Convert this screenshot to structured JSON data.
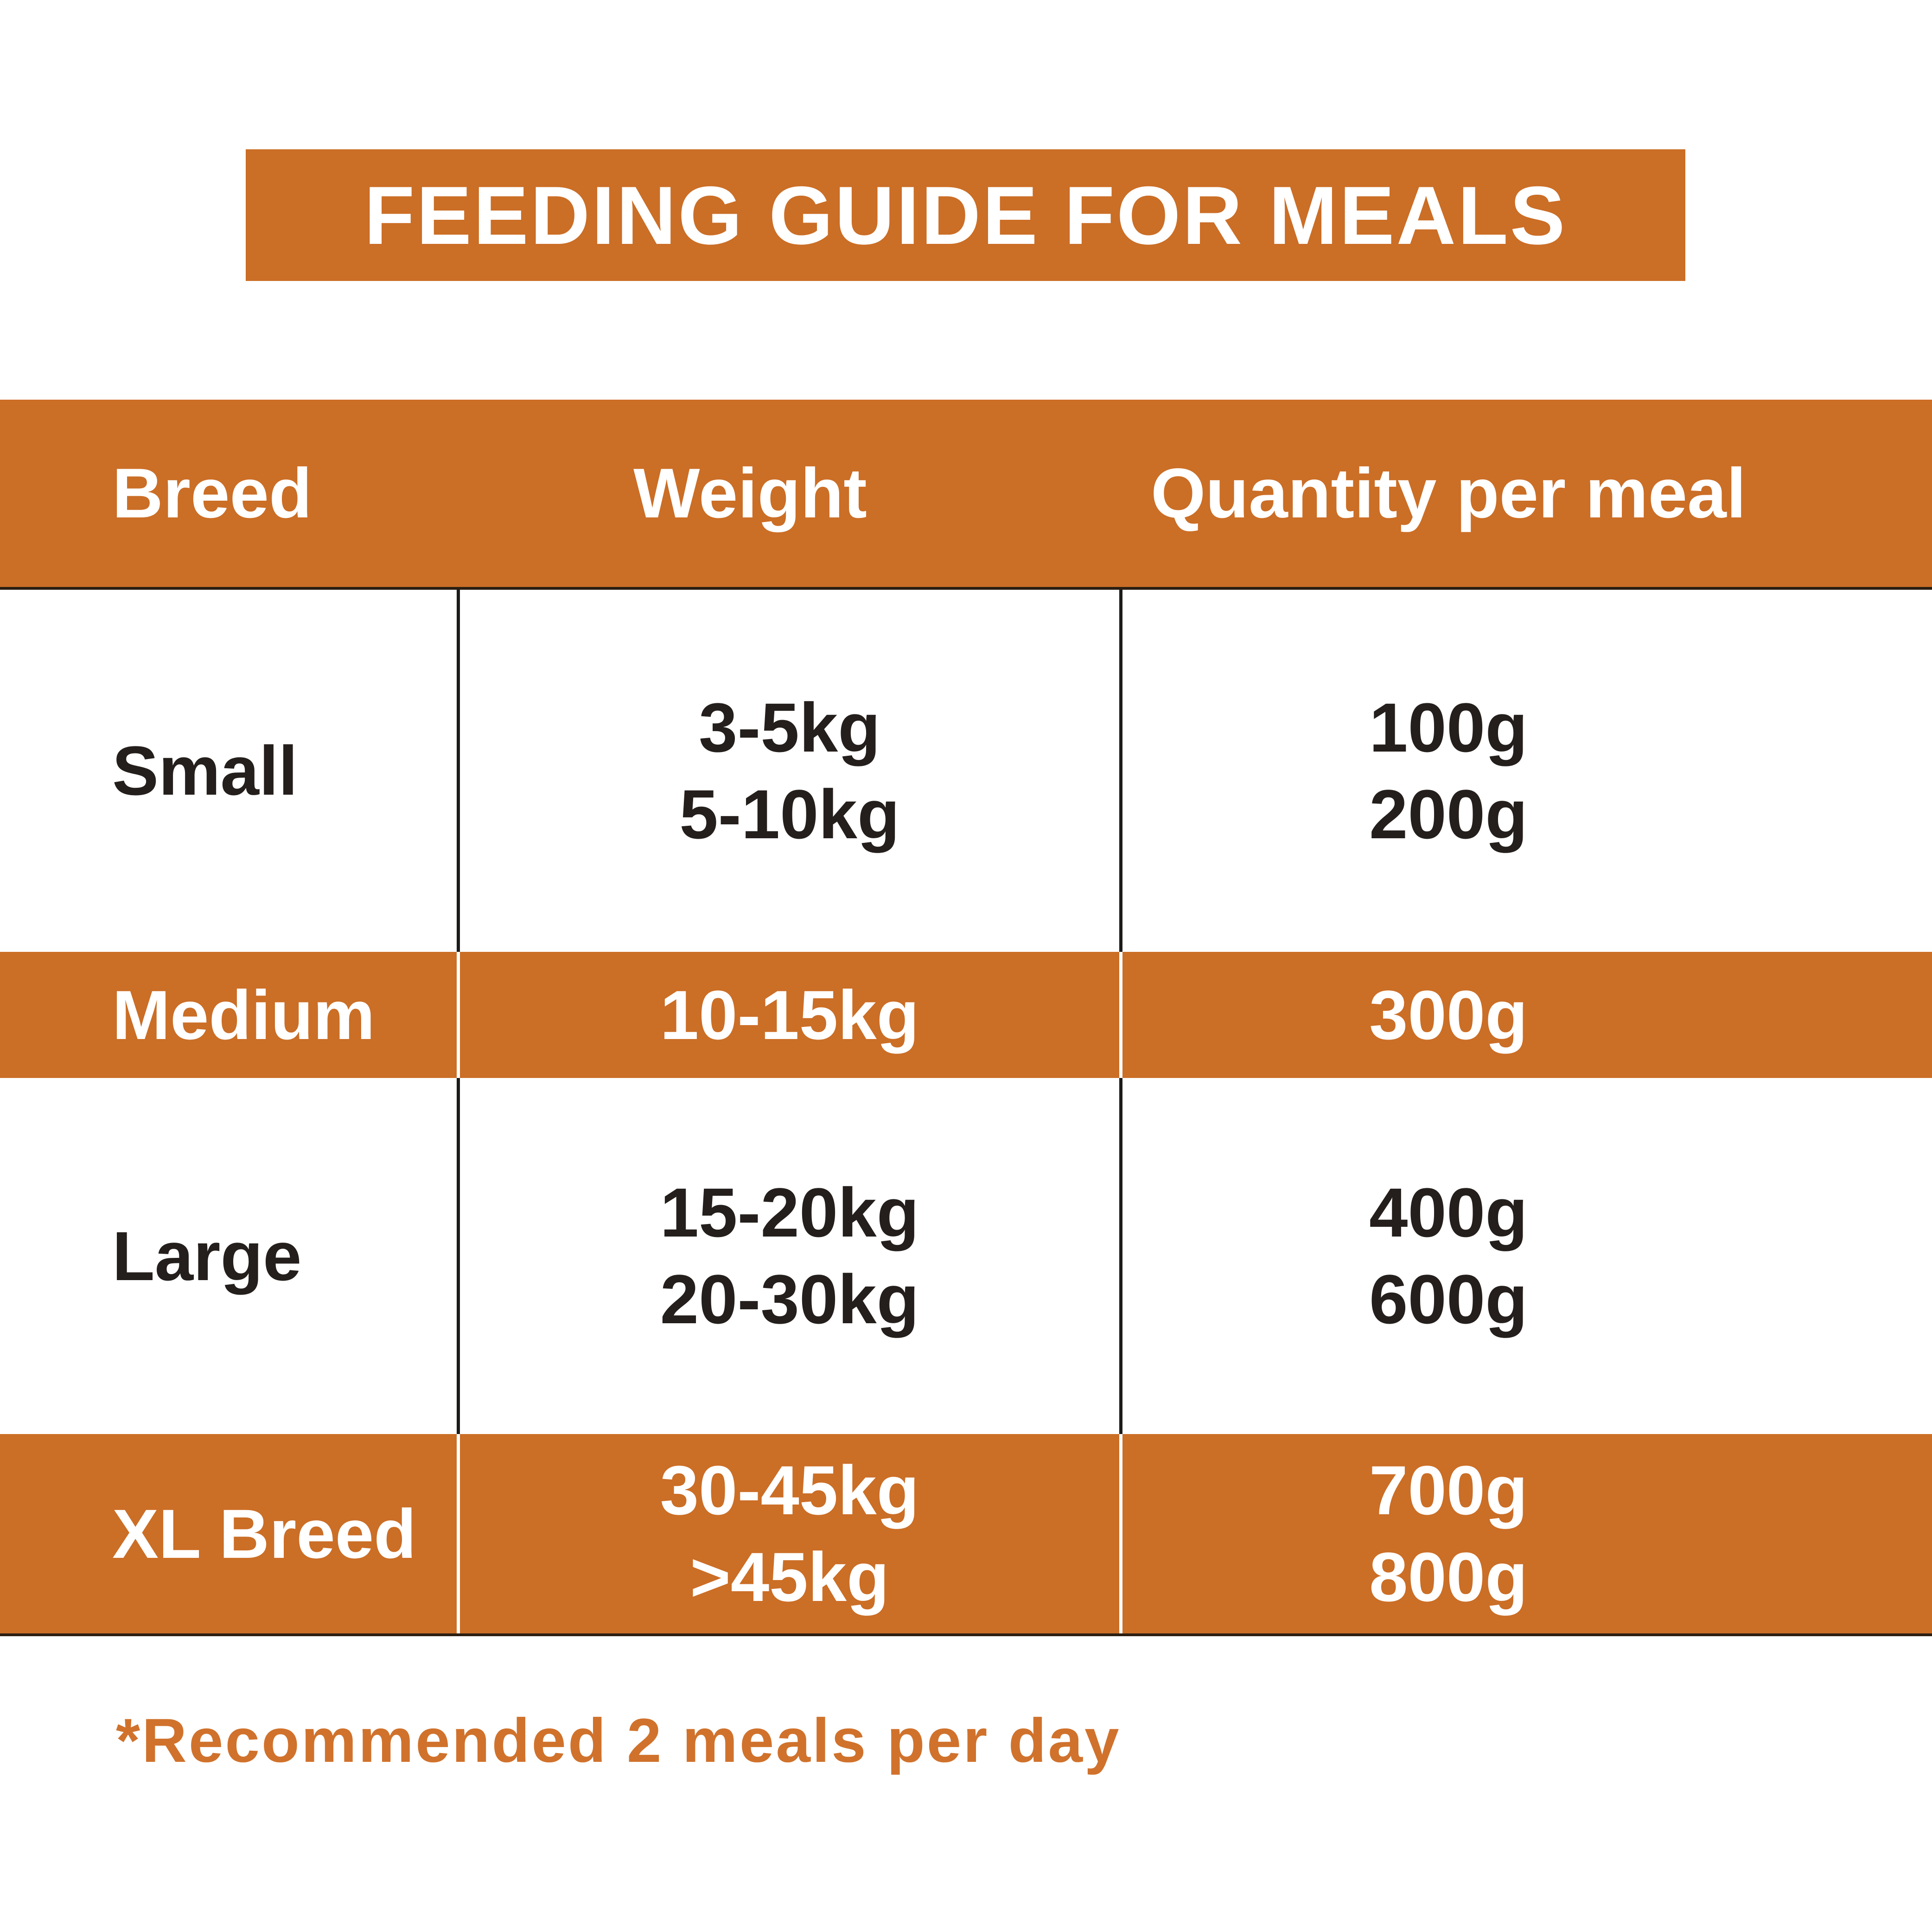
{
  "title": "FEEDING GUIDE FOR MEALS",
  "table": {
    "columns": [
      "Breed",
      "Weight",
      "Quantity per meal"
    ],
    "rows": [
      {
        "breed": "Small",
        "weights": [
          "3-5kg",
          "5-10kg"
        ],
        "quantities": [
          "100g",
          "200g"
        ],
        "highlighted": false
      },
      {
        "breed": "Medium",
        "weights": [
          "10-15kg"
        ],
        "quantities": [
          "300g"
        ],
        "highlighted": true
      },
      {
        "breed": "Large",
        "weights": [
          "15-20kg",
          "20-30kg"
        ],
        "quantities": [
          "400g",
          "600g"
        ],
        "highlighted": false
      },
      {
        "breed": "XL Breed",
        "weights": [
          "30-45kg",
          ">45kg"
        ],
        "quantities": [
          "700g",
          "800g"
        ],
        "highlighted": true
      }
    ]
  },
  "footnote": "*Recommended 2 meals per day",
  "colors": {
    "accent_orange": "#cb6e26",
    "footnote_orange": "#d0722c",
    "text_dark": "#241f1c",
    "rule_dark": "#2b1f12",
    "divider_black": "#1d1c1a",
    "divider_white": "#ffffff"
  }
}
